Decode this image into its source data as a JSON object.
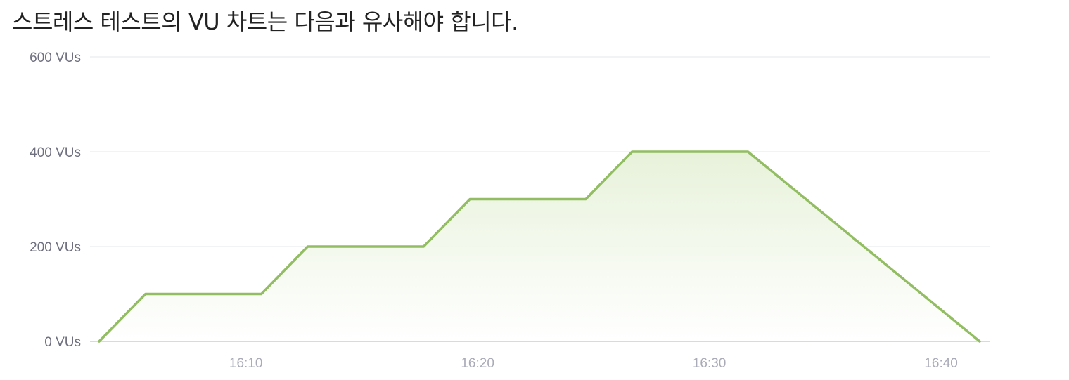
{
  "caption": "스트레스 테스트의 VU 차트는 다음과 유사해야 합니다.",
  "colors": {
    "line": "#92bd62",
    "fill": "#e6f1d8",
    "grid": "#eeeff2",
    "axis": "#c9cdd9"
  },
  "chart_data": {
    "type": "area",
    "title": "",
    "xlabel": "",
    "ylabel": "",
    "y_unit": "VUs",
    "ylim": [
      0,
      600
    ],
    "xlim": [
      "16:03:40",
      "16:41:40"
    ],
    "y_ticks": [
      "0 VUs",
      "200 VUs",
      "400 VUs",
      "600 VUs"
    ],
    "y_tick_values": [
      0,
      200,
      400,
      600
    ],
    "x_ticks": [
      "16:10",
      "16:20",
      "16:30",
      "16:40"
    ],
    "grid": true,
    "legend": "none",
    "series": [
      {
        "points": [
          [
            "16:03:40",
            0
          ],
          [
            "16:05:40",
            100
          ],
          [
            "16:10:40",
            100
          ],
          [
            "16:12:40",
            200
          ],
          [
            "16:17:40",
            200
          ],
          [
            "16:19:40",
            300
          ],
          [
            "16:24:40",
            300
          ],
          [
            "16:26:40",
            400
          ],
          [
            "16:31:40",
            400
          ],
          [
            "16:41:40",
            0
          ]
        ]
      }
    ]
  }
}
